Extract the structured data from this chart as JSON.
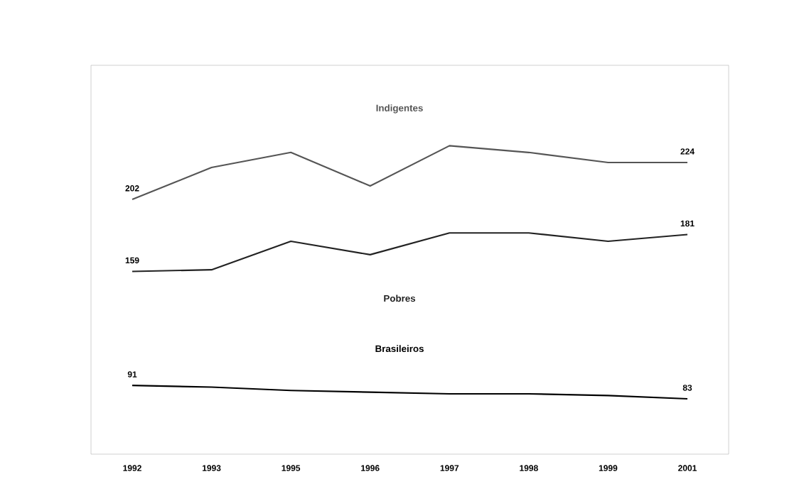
{
  "chart_data": {
    "type": "line",
    "categories": [
      "1992",
      "1993",
      "1995",
      "1996",
      "1997",
      "1998",
      "1999",
      "2001"
    ],
    "series": [
      {
        "name": "Indigentes",
        "color": "#555555",
        "values": [
          202,
          221,
          230,
          210,
          234,
          230,
          224,
          224
        ],
        "value_labels": [
          "202",
          null,
          null,
          null,
          null,
          null,
          null,
          "224"
        ]
      },
      {
        "name": "Pobres",
        "color": "#222222",
        "values": [
          159,
          160,
          177,
          169,
          182,
          182,
          177,
          181
        ],
        "value_labels": [
          "159",
          null,
          null,
          null,
          null,
          null,
          null,
          "181"
        ]
      },
      {
        "name": "Brasileiros",
        "color": "#000000",
        "values": [
          91,
          90,
          88,
          87,
          86,
          86,
          85,
          83
        ],
        "value_labels": [
          "91",
          null,
          null,
          null,
          null,
          null,
          null,
          "83"
        ]
      }
    ],
    "ylim": [
      50,
      282
    ],
    "tick_labels": "x",
    "grid": false,
    "legend": false,
    "marker": "none",
    "line_style": "solid"
  }
}
